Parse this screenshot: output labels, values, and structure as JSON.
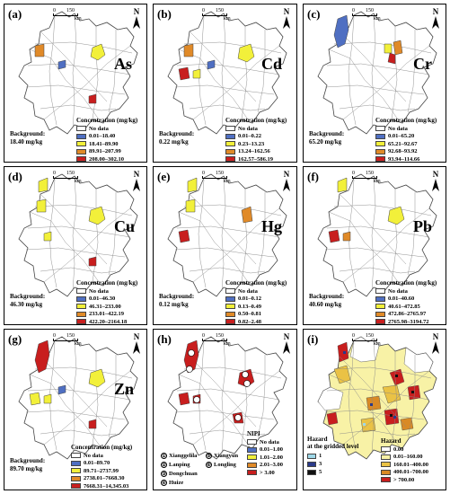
{
  "colors": {
    "no_data": "#ffffff",
    "c1": "#4f6fc2",
    "c2": "#f2f03a",
    "c3": "#e08a28",
    "c4": "#c81e1e",
    "hz1": "#9fd8e8",
    "hz3": "#2a3a8a",
    "hz5": "#111111",
    "hzc0": "#ffffff",
    "hzc1": "#f8f2a6",
    "hzc2": "#eac245",
    "hzc3": "#d98a25",
    "hzc4": "#c81e1e"
  },
  "scale": {
    "zero": "0",
    "max": "150",
    "unit": "km"
  },
  "north": "N",
  "legend_title": "Concentration (mg/kg)",
  "no_data_label": "No data",
  "panels": [
    {
      "id": "a",
      "label": "(a)",
      "element": "As",
      "background": [
        "Background:",
        "18.40 mg/kg"
      ],
      "classes": [
        "0.01–18.40",
        "18.41–89.90",
        "89.91–207.99",
        "208.00–302.10"
      ]
    },
    {
      "id": "b",
      "label": "(b)",
      "element": "Cd",
      "background": [
        "Background:",
        "0.22 mg/kg"
      ],
      "classes": [
        "0.01–0.22",
        "0.23–13.23",
        "13.24–162.56",
        "162.57–586.19"
      ]
    },
    {
      "id": "c",
      "label": "(c)",
      "element": "Cr",
      "background": [
        "Background:",
        "65.20 mg/kg"
      ],
      "classes": [
        "0.01–65.20",
        "65.21–92.67",
        "92.68–93.92",
        "93.94–114.66"
      ]
    },
    {
      "id": "d",
      "label": "(d)",
      "element": "Cu",
      "background": [
        "Background:",
        "46.30 mg/kg"
      ],
      "classes": [
        "0.01–46.30",
        "46.31–233.00",
        "233.01–422.19",
        "422.20–2164.18"
      ]
    },
    {
      "id": "e",
      "label": "(e)",
      "element": "Hg",
      "background": [
        "Background:",
        "0.12 mg/kg"
      ],
      "classes": [
        "0.01–0.12",
        "0.13–0.49",
        "0.50–0.81",
        "0.82–2.48"
      ]
    },
    {
      "id": "f",
      "label": "(f)",
      "element": "Pb",
      "background": [
        "Background:",
        "40.60 mg/kg"
      ],
      "classes": [
        "0.01–40.60",
        "40.61–472.85",
        "472.86–2765.97",
        "2765.98–3194.72"
      ]
    },
    {
      "id": "g",
      "label": "(g)",
      "element": "Zn",
      "background": [
        "Background:",
        "89.70 mg/kg"
      ],
      "classes": [
        "0.01–89.70",
        "89.71–2737.99",
        "2738.01–7668.30",
        "7668.31–14,345.03"
      ]
    }
  ],
  "panel_h": {
    "label": "(h)",
    "legend_title": "NIPI",
    "classes": [
      "0.01–1.00",
      "1.01–2.00",
      "2.01–3.00",
      "> 3.00"
    ],
    "counties": [
      {
        "sym": "①",
        "name": "Xianggelila"
      },
      {
        "sym": "②",
        "name": "Lanping"
      },
      {
        "sym": "③",
        "name": "Dongchuan"
      },
      {
        "sym": "④",
        "name": "Huize"
      },
      {
        "sym": "⑤",
        "name": "Xiangyun"
      },
      {
        "sym": "⑥",
        "name": "Longling"
      }
    ]
  },
  "panel_i": {
    "label": "(i)",
    "grid_title": [
      "Hazard",
      "at the gridded level"
    ],
    "grid_classes": [
      "1",
      "3",
      "5"
    ],
    "county_title": "Hazard",
    "county_classes": [
      "0.00",
      "0.01–160.00",
      "160.01–400.00",
      "400.01–700.00",
      "> 700.00"
    ]
  }
}
